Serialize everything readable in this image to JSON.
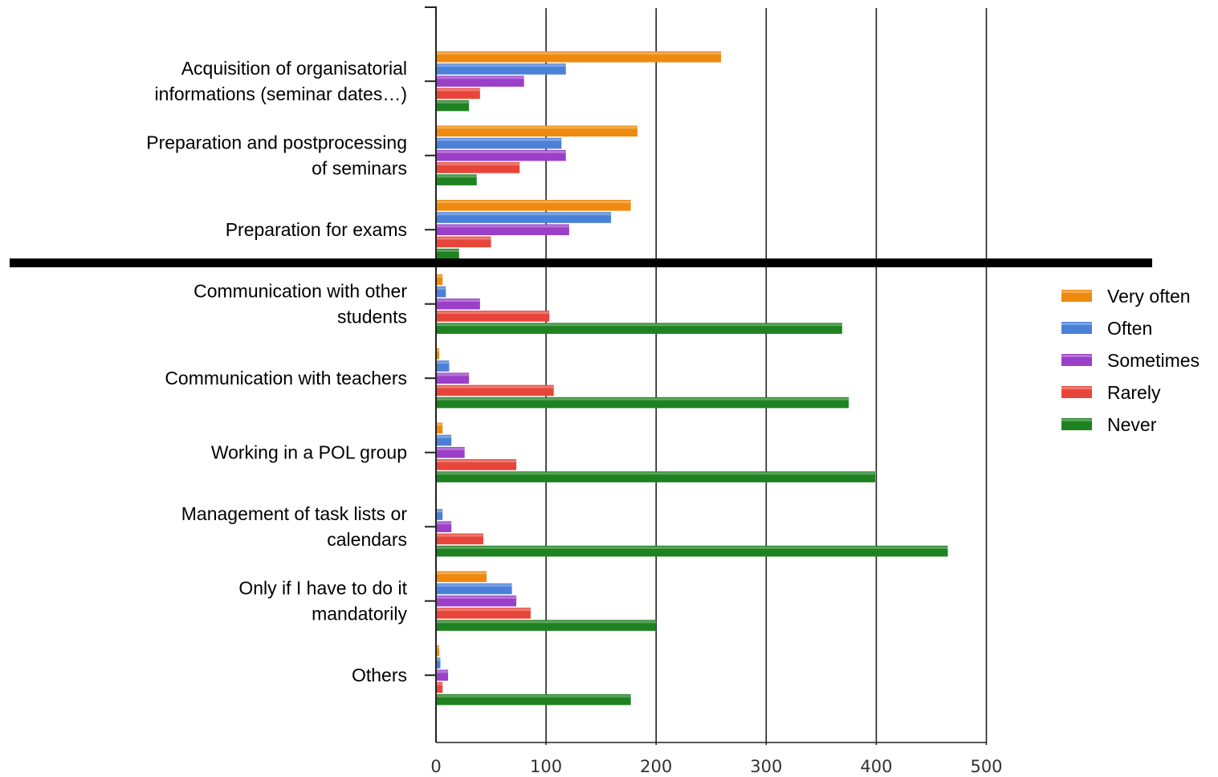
{
  "chart_data": {
    "type": "bar",
    "orientation": "horizontal",
    "categories": [
      [
        "Acquisition of organisatorial",
        "informations (seminar dates…)"
      ],
      [
        "Preparation and postprocessing",
        "of seminars"
      ],
      [
        "Preparation for exams"
      ],
      [
        "Communication with other",
        "students"
      ],
      [
        "Communication with teachers"
      ],
      [
        "Working in a POL group"
      ],
      [
        "Management of task lists or",
        "calendars"
      ],
      [
        "Only if I have to do it",
        "mandatorily"
      ],
      [
        "Others"
      ]
    ],
    "series": [
      {
        "name": "Very often",
        "color": "#ef8a0f",
        "values": [
          259,
          183,
          177,
          6,
          3,
          6,
          0,
          46,
          3
        ]
      },
      {
        "name": "Often",
        "color": "#4a80d8",
        "values": [
          118,
          114,
          159,
          9,
          12,
          14,
          6,
          69,
          4
        ]
      },
      {
        "name": "Sometimes",
        "color": "#9b3fc9",
        "values": [
          80,
          118,
          121,
          40,
          30,
          26,
          14,
          73,
          11
        ]
      },
      {
        "name": "Rarely",
        "color": "#e8453a",
        "values": [
          40,
          76,
          50,
          103,
          107,
          73,
          43,
          86,
          6
        ]
      },
      {
        "name": "Never",
        "color": "#1e8220",
        "values": [
          30,
          37,
          21,
          369,
          375,
          399,
          465,
          200,
          177
        ]
      }
    ],
    "x_ticks": [
      "0",
      "100",
      "200",
      "300",
      "400",
      "500"
    ],
    "xlim": [
      0,
      500
    ],
    "grid": true,
    "legend": "right"
  }
}
